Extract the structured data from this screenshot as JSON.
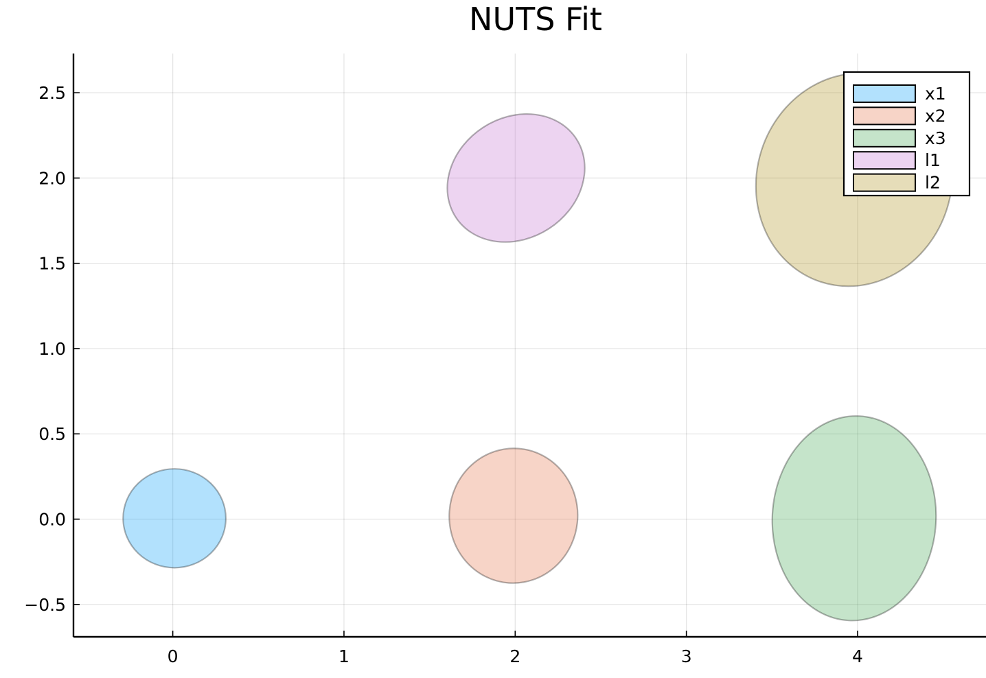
{
  "chart_data": {
    "type": "scatter",
    "title": "NUTS Fit",
    "xlabel": "",
    "ylabel": "",
    "xlim": [
      -0.58,
      4.75
    ],
    "ylim": [
      -0.69,
      2.73
    ],
    "x_ticks": [
      0,
      1,
      2,
      3,
      4
    ],
    "x_tick_labels": [
      "0",
      "1",
      "2",
      "3",
      "4"
    ],
    "y_ticks": [
      -0.5,
      0.0,
      0.5,
      1.0,
      1.5,
      2.0,
      2.5
    ],
    "y_tick_labels": [
      "−0.5",
      "0.0",
      "0.5",
      "1.0",
      "1.5",
      "2.0",
      "2.5"
    ],
    "grid": true,
    "legend_position": "top-right",
    "series": [
      {
        "name": "x1",
        "shape": "ellipse",
        "center": [
          0.01,
          0.005
        ],
        "rx": 0.3,
        "ry": 0.29,
        "angle_deg": 0,
        "color": "#009AFA"
      },
      {
        "name": "x2",
        "shape": "ellipse",
        "center": [
          1.99,
          0.02
        ],
        "rx": 0.375,
        "ry": 0.395,
        "angle_deg": 4,
        "color": "#E36F47"
      },
      {
        "name": "x3",
        "shape": "ellipse",
        "center": [
          3.98,
          0.005
        ],
        "rx": 0.478,
        "ry": 0.6,
        "angle_deg": 3,
        "color": "#3EA44E"
      },
      {
        "name": "l1",
        "shape": "ellipse",
        "center": [
          2.005,
          2.0
        ],
        "rx": 0.42,
        "ry": 0.354,
        "angle_deg": -33,
        "color": "#C371D2"
      },
      {
        "name": "l2",
        "shape": "ellipse",
        "center": [
          3.98,
          1.99
        ],
        "rx": 0.568,
        "ry": 0.63,
        "angle_deg": 18,
        "color": "#AC8E18"
      }
    ]
  }
}
